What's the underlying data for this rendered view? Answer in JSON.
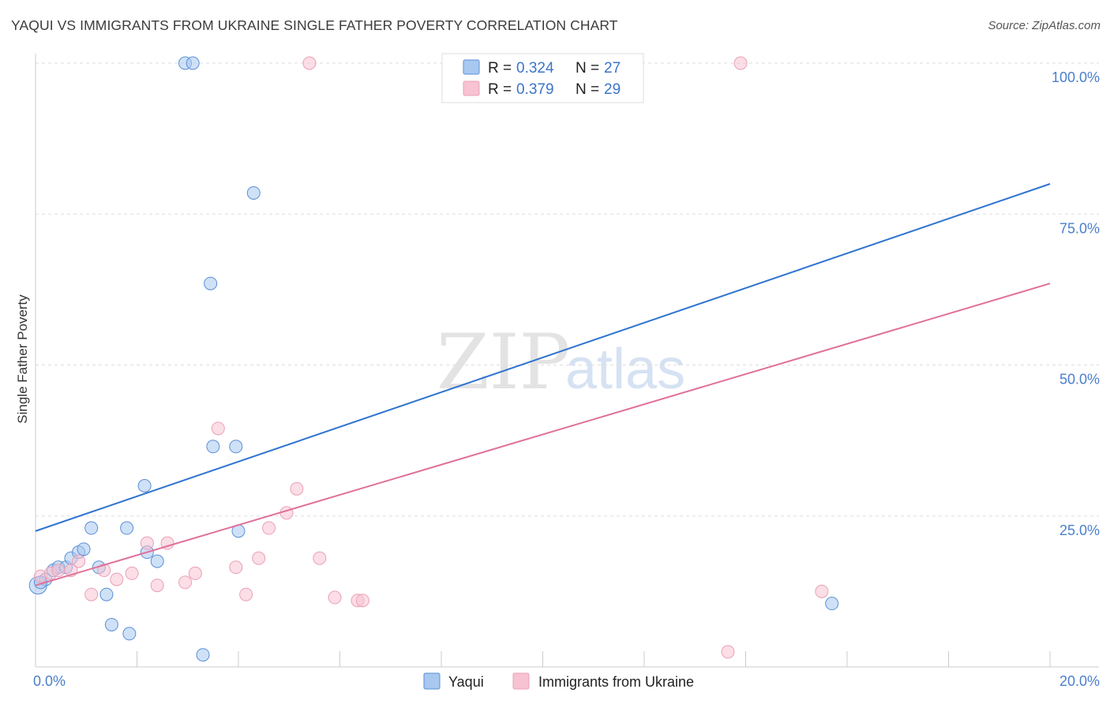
{
  "title": "YAQUI VS IMMIGRANTS FROM UKRAINE SINGLE FATHER POVERTY CORRELATION CHART",
  "source": "Source: ZipAtlas.com",
  "watermark": {
    "zip": "ZIP",
    "atlas": "atlas"
  },
  "chart_data": {
    "type": "scatter",
    "title": "YAQUI VS IMMIGRANTS FROM UKRAINE SINGLE FATHER POVERTY CORRELATION CHART",
    "xlabel": "",
    "ylabel": "Single Father Poverty",
    "xlim": [
      0,
      20
    ],
    "ylim": [
      0,
      100
    ],
    "x_tick_labels": [
      {
        "value": 0,
        "label": "0.0%"
      },
      {
        "value": 20,
        "label": "20.0%"
      }
    ],
    "y_tick_labels": [
      {
        "value": 25,
        "label": "25.0%"
      },
      {
        "value": 50,
        "label": "50.0%"
      },
      {
        "value": 75,
        "label": "75.0%"
      },
      {
        "value": 100,
        "label": "100.0%"
      }
    ],
    "grid": true,
    "legend_placement": "top-center",
    "series": [
      {
        "name": "Yaqui",
        "color": "#a8c8f0",
        "edge": "#5a8fd6",
        "line_color": "#2f74d0",
        "R": "0.324",
        "N": "27",
        "trend": [
          [
            0,
            22.5
          ],
          [
            20,
            80
          ]
        ],
        "points": [
          [
            0.05,
            13.5
          ],
          [
            0.2,
            14.5
          ],
          [
            0.35,
            16
          ],
          [
            0.45,
            16.5
          ],
          [
            0.6,
            16.5
          ],
          [
            0.7,
            18
          ],
          [
            0.85,
            19
          ],
          [
            0.95,
            19.5
          ],
          [
            1.1,
            23
          ],
          [
            1.25,
            16.5
          ],
          [
            1.4,
            12
          ],
          [
            1.5,
            7
          ],
          [
            1.8,
            23
          ],
          [
            1.85,
            5.5
          ],
          [
            2.15,
            30
          ],
          [
            2.2,
            19
          ],
          [
            2.4,
            17.5
          ],
          [
            2.95,
            100
          ],
          [
            3.1,
            100
          ],
          [
            3.3,
            2
          ],
          [
            3.45,
            63.5
          ],
          [
            3.5,
            36.5
          ],
          [
            3.95,
            36.5
          ],
          [
            4.0,
            22.5
          ],
          [
            4.3,
            78.5
          ],
          [
            15.7,
            10.5
          ],
          [
            0.1,
            14
          ]
        ]
      },
      {
        "name": "Immigrants from Ukraine",
        "color": "#f7c2d2",
        "edge": "#e9a0b8",
        "line_color": "#e0709a",
        "R": "0.379",
        "N": "29",
        "trend": [
          [
            0,
            13.5
          ],
          [
            20,
            63.5
          ]
        ],
        "points": [
          [
            0.1,
            15
          ],
          [
            0.3,
            15.5
          ],
          [
            0.45,
            16
          ],
          [
            0.7,
            16
          ],
          [
            0.85,
            17.5
          ],
          [
            1.1,
            12
          ],
          [
            1.35,
            16
          ],
          [
            1.6,
            14.5
          ],
          [
            1.9,
            15.5
          ],
          [
            2.2,
            20.5
          ],
          [
            2.4,
            13.5
          ],
          [
            2.6,
            20.5
          ],
          [
            2.95,
            14
          ],
          [
            3.15,
            15.5
          ],
          [
            3.6,
            39.5
          ],
          [
            3.95,
            16.5
          ],
          [
            4.15,
            12
          ],
          [
            4.4,
            18
          ],
          [
            4.6,
            23
          ],
          [
            4.95,
            25.5
          ],
          [
            5.15,
            29.5
          ],
          [
            5.4,
            100
          ],
          [
            5.6,
            18
          ],
          [
            5.9,
            11.5
          ],
          [
            6.35,
            11
          ],
          [
            6.45,
            11
          ],
          [
            13.65,
            2.5
          ],
          [
            13.9,
            100
          ],
          [
            15.5,
            12.5
          ]
        ]
      }
    ]
  }
}
